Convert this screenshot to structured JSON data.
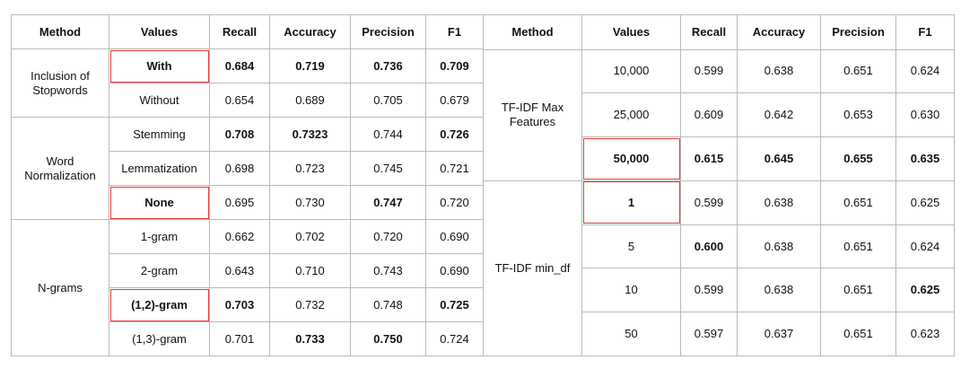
{
  "left_table": {
    "headers": [
      "Method",
      "Values",
      "Recall",
      "Accuracy",
      "Precision",
      "F1"
    ],
    "groups": [
      {
        "method": "Inclusion of Stopwords",
        "rows": [
          {
            "value": "With",
            "recall": "0.684",
            "accuracy": "0.719",
            "precision": "0.736",
            "f1": "0.709"
          },
          {
            "value": "Without",
            "recall": "0.654",
            "accuracy": "0.689",
            "precision": "0.705",
            "f1": "0.679"
          }
        ]
      },
      {
        "method": "Word Normalization",
        "rows": [
          {
            "value": "Stemming",
            "recall": "0.708",
            "accuracy": "0.7323",
            "precision": "0.744",
            "f1": "0.726"
          },
          {
            "value": "Lemmatization",
            "recall": "0.698",
            "accuracy": "0.723",
            "precision": "0.745",
            "f1": "0.721"
          },
          {
            "value": "None",
            "recall": "0.695",
            "accuracy": "0.730",
            "precision": "0.747",
            "f1": "0.720"
          }
        ]
      },
      {
        "method": "N-grams",
        "rows": [
          {
            "value": "1-gram",
            "recall": "0.662",
            "accuracy": "0.702",
            "precision": "0.720",
            "f1": "0.690"
          },
          {
            "value": "2-gram",
            "recall": "0.643",
            "accuracy": "0.710",
            "precision": "0.743",
            "f1": "0.690"
          },
          {
            "value": "(1,2)-gram",
            "recall": "0.703",
            "accuracy": "0.732",
            "precision": "0.748",
            "f1": "0.725"
          },
          {
            "value": "(1,3)-gram",
            "recall": "0.701",
            "accuracy": "0.733",
            "precision": "0.750",
            "f1": "0.724"
          }
        ]
      }
    ]
  },
  "right_table": {
    "headers": [
      "Method",
      "Values",
      "Recall",
      "Accuracy",
      "Precision",
      "F1"
    ],
    "groups": [
      {
        "method": "TF-IDF Max Features",
        "rows": [
          {
            "value": "10,000",
            "recall": "0.599",
            "accuracy": "0.638",
            "precision": "0.651",
            "f1": "0.624"
          },
          {
            "value": "25,000",
            "recall": "0.609",
            "accuracy": "0.642",
            "precision": "0.653",
            "f1": "0.630"
          },
          {
            "value": "50,000",
            "recall": "0.615",
            "accuracy": "0.645",
            "precision": "0.655",
            "f1": "0.635"
          }
        ]
      },
      {
        "method": "TF-IDF min_df",
        "rows": [
          {
            "value": "1",
            "recall": "0.599",
            "accuracy": "0.638",
            "precision": "0.651",
            "f1": "0.625"
          },
          {
            "value": "5",
            "recall": "0.600",
            "accuracy": "0.638",
            "precision": "0.651",
            "f1": "0.624"
          },
          {
            "value": "10",
            "recall": "0.599",
            "accuracy": "0.638",
            "precision": "0.651",
            "f1": "0.625"
          },
          {
            "value": "50",
            "recall": "0.597",
            "accuracy": "0.637",
            "precision": "0.651",
            "f1": "0.623"
          }
        ]
      }
    ]
  },
  "highlight_color": "#e53935"
}
